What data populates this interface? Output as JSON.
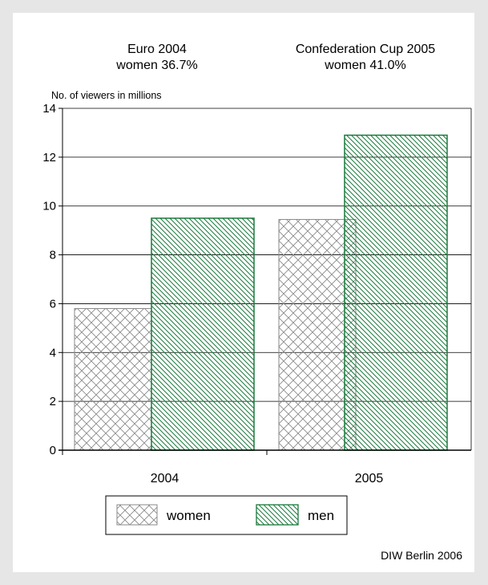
{
  "chart_data": {
    "type": "bar",
    "annotations": [
      {
        "line1": "Euro 2004",
        "line2": "women 36.7%"
      },
      {
        "line1": "Confederation Cup 2005",
        "line2": "women 41.0%"
      }
    ],
    "ylabel": "No. of viewers in millions",
    "categories": [
      "2004",
      "2005"
    ],
    "series": [
      {
        "name": "women",
        "values": [
          5.8,
          9.45
        ],
        "color": "#909090",
        "pattern": "crosshatch"
      },
      {
        "name": "men",
        "values": [
          9.5,
          12.9
        ],
        "color": "#1a7a3c",
        "pattern": "diagonal"
      }
    ],
    "ylim": [
      0,
      14
    ],
    "yticks": [
      0,
      2,
      4,
      6,
      8,
      10,
      12,
      14
    ],
    "grid": true,
    "legend_position": "bottom-center",
    "source": "DIW Berlin 2006"
  }
}
